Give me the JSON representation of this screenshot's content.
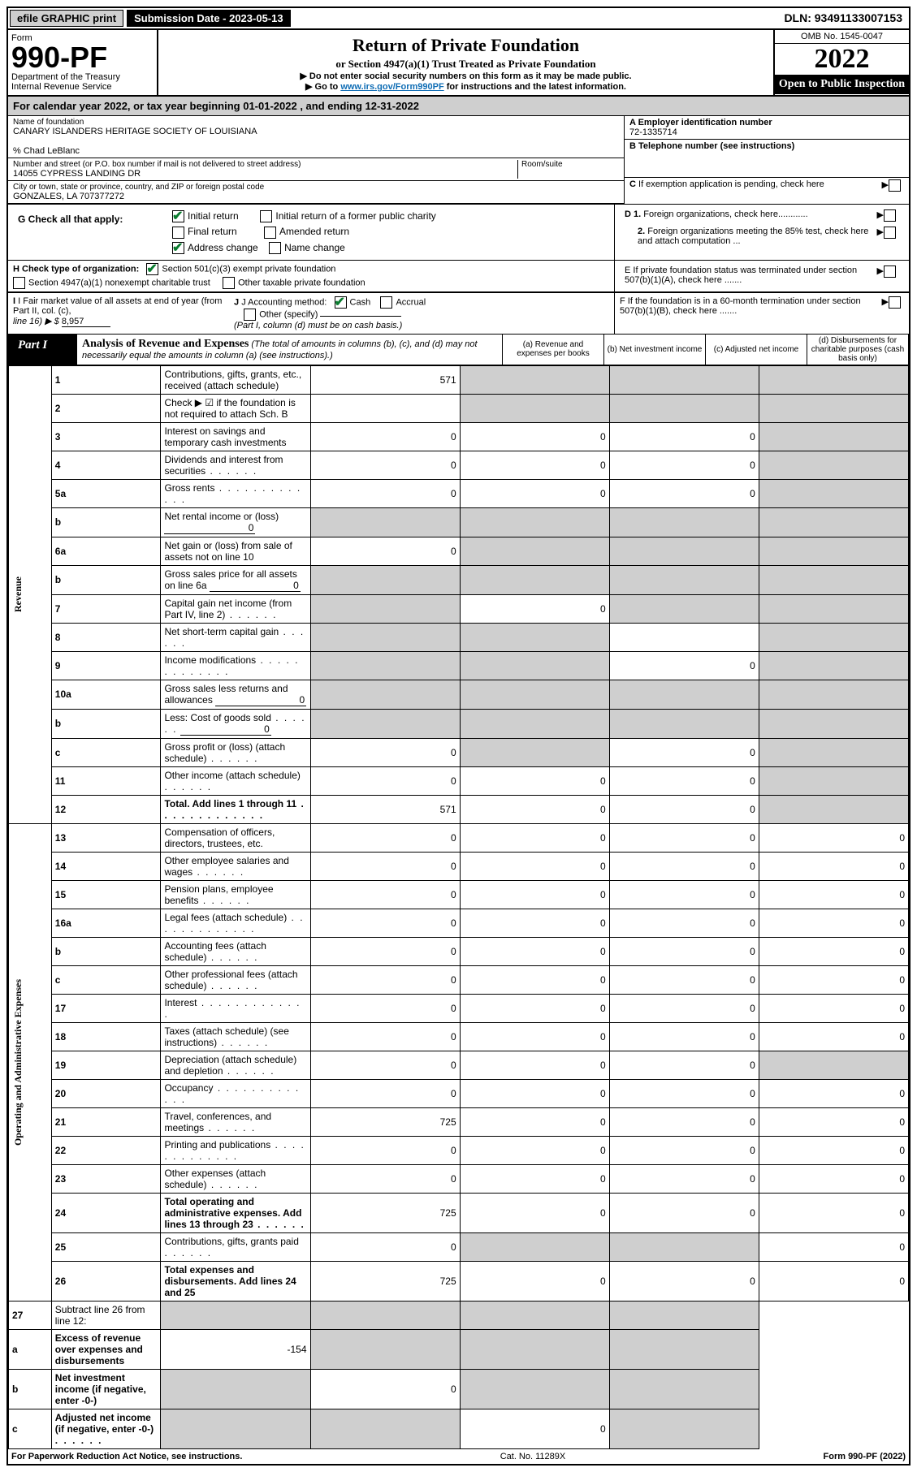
{
  "topbar": {
    "efile": "efile GRAPHIC print",
    "submission_label": "Submission Date - 2023-05-13",
    "dln": "DLN: 93491133007153"
  },
  "header": {
    "form_word": "Form",
    "form_no": "990-PF",
    "dept": "Department of the Treasury",
    "irs": "Internal Revenue Service",
    "title": "Return of Private Foundation",
    "subtitle": "or Section 4947(a)(1) Trust Treated as Private Foundation",
    "instr1": "▶ Do not enter social security numbers on this form as it may be made public.",
    "instr2_pre": "▶ Go to ",
    "instr2_link": "www.irs.gov/Form990PF",
    "instr2_post": " for instructions and the latest information.",
    "omb": "OMB No. 1545-0047",
    "year": "2022",
    "open": "Open to Public Inspection"
  },
  "cal_year": "For calendar year 2022, or tax year beginning 01-01-2022             , and ending 12-31-2022",
  "entity": {
    "name_label": "Name of foundation",
    "name": "CANARY ISLANDERS HERITAGE SOCIETY OF LOUISIANA",
    "care_of": "% Chad LeBlanc",
    "addr_label": "Number and street (or P.O. box number if mail is not delivered to street address)",
    "addr": "14055 CYPRESS LANDING DR",
    "room_label": "Room/suite",
    "city_label": "City or town, state or province, country, and ZIP or foreign postal code",
    "city": "GONZALES, LA  707377272",
    "ein_label": "A Employer identification number",
    "ein": "72-1335714",
    "phone_label": "B Telephone number (see instructions)",
    "c_label": "C If exemption application is pending, check here"
  },
  "g": {
    "label": "G Check all that apply:",
    "initial": "Initial return",
    "initial_former": "Initial return of a former public charity",
    "final": "Final return",
    "amended": "Amended return",
    "address": "Address change",
    "name_change": "Name change"
  },
  "d": {
    "d1": "D 1. Foreign organizations, check here",
    "d2": "2. Foreign organizations meeting the 85% test, check here and attach computation ...",
    "e": "E  If private foundation status was terminated under section 507(b)(1)(A), check here .......",
    "f": "F  If the foundation is in a 60-month termination under section 507(b)(1)(B), check here ......."
  },
  "h": {
    "label": "H Check type of organization:",
    "opt1": "Section 501(c)(3) exempt private foundation",
    "opt2": "Section 4947(a)(1) nonexempt charitable trust",
    "opt3": "Other taxable private foundation"
  },
  "i": {
    "label": "I Fair market value of all assets at end of year (from Part II, col. (c),",
    "line": "line 16) ▶ $ ",
    "value": "8,957"
  },
  "j": {
    "label": "J Accounting method:",
    "cash": "Cash",
    "accrual": "Accrual",
    "other": "Other (specify)",
    "note": "(Part I, column (d) must be on cash basis.)"
  },
  "part1": {
    "tab": "Part I",
    "title": "Analysis of Revenue and Expenses",
    "note": " (The total of amounts in columns (b), (c), and (d) may not necessarily equal the amounts in column (a) (see instructions).)",
    "col_a": "(a)  Revenue and expenses per books",
    "col_b": "(b)  Net investment income",
    "col_c": "(c)  Adjusted net income",
    "col_d": "(d)  Disbursements for charitable purposes (cash basis only)"
  },
  "sidelabels": {
    "revenue": "Revenue",
    "expenses": "Operating and Administrative Expenses"
  },
  "rows": [
    {
      "n": "1",
      "d": "Contributions, gifts, grants, etc., received (attach schedule)",
      "a": "571",
      "b": "",
      "c": "",
      "dd": "",
      "bg": true,
      "cc": true,
      "ddg": true
    },
    {
      "n": "2",
      "d": "Check ▶ ☑ if the foundation is not required to attach Sch. B",
      "type": "check",
      "bg": true,
      "cc": true,
      "ddg": true
    },
    {
      "n": "3",
      "d": "Interest on savings and temporary cash investments",
      "a": "0",
      "b": "0",
      "c": "0",
      "ddg": true
    },
    {
      "n": "4",
      "d": "Dividends and interest from securities",
      "a": "0",
      "b": "0",
      "c": "0",
      "ddg": true,
      "dots": "short"
    },
    {
      "n": "5a",
      "d": "Gross rents",
      "a": "0",
      "b": "0",
      "c": "0",
      "ddg": true,
      "dots": "long"
    },
    {
      "n": "b",
      "d": "Net rental income or (loss)",
      "inline": "0",
      "bg": true,
      "cc": true,
      "ddg": true,
      "ag": true
    },
    {
      "n": "6a",
      "d": "Net gain or (loss) from sale of assets not on line 10",
      "a": "0",
      "bg": true,
      "cc": true,
      "ddg": true
    },
    {
      "n": "b",
      "d": "Gross sales price for all assets on line 6a",
      "inline": "0",
      "bg": true,
      "cc": true,
      "ddg": true,
      "ag": true
    },
    {
      "n": "7",
      "d": "Capital gain net income (from Part IV, line 2)",
      "b": "0",
      "ag": true,
      "cc": true,
      "ddg": true,
      "dots": "short"
    },
    {
      "n": "8",
      "d": "Net short-term capital gain",
      "ag": true,
      "bg": true,
      "ddg": true,
      "c": "",
      "dots": "short"
    },
    {
      "n": "9",
      "d": "Income modifications",
      "ag": true,
      "bg": true,
      "c": "0",
      "ddg": true,
      "dots": "long"
    },
    {
      "n": "10a",
      "d": "Gross sales less returns and allowances",
      "inline": "0",
      "ag": true,
      "bg": true,
      "cc": true,
      "ddg": true
    },
    {
      "n": "b",
      "d": "Less: Cost of goods sold",
      "inline": "0",
      "ag": true,
      "bg": true,
      "cc": true,
      "ddg": true,
      "dots": "short"
    },
    {
      "n": "c",
      "d": "Gross profit or (loss) (attach schedule)",
      "a": "0",
      "bg": true,
      "c": "0",
      "ddg": true,
      "dots": "short"
    },
    {
      "n": "11",
      "d": "Other income (attach schedule)",
      "a": "0",
      "b": "0",
      "c": "0",
      "ddg": true,
      "dots": "short"
    },
    {
      "n": "12",
      "d": "Total. Add lines 1 through 11",
      "bold": true,
      "a": "571",
      "b": "0",
      "c": "0",
      "ddg": true,
      "dots": "long"
    }
  ],
  "exp_rows": [
    {
      "n": "13",
      "d": "Compensation of officers, directors, trustees, etc.",
      "a": "0",
      "b": "0",
      "c": "0",
      "dd": "0"
    },
    {
      "n": "14",
      "d": "Other employee salaries and wages",
      "a": "0",
      "b": "0",
      "c": "0",
      "dd": "0",
      "dots": "short"
    },
    {
      "n": "15",
      "d": "Pension plans, employee benefits",
      "a": "0",
      "b": "0",
      "c": "0",
      "dd": "0",
      "dots": "short"
    },
    {
      "n": "16a",
      "d": "Legal fees (attach schedule)",
      "a": "0",
      "b": "0",
      "c": "0",
      "dd": "0",
      "dots": "long"
    },
    {
      "n": "b",
      "d": "Accounting fees (attach schedule)",
      "a": "0",
      "b": "0",
      "c": "0",
      "dd": "0",
      "dots": "short"
    },
    {
      "n": "c",
      "d": "Other professional fees (attach schedule)",
      "a": "0",
      "b": "0",
      "c": "0",
      "dd": "0",
      "dots": "short"
    },
    {
      "n": "17",
      "d": "Interest",
      "a": "0",
      "b": "0",
      "c": "0",
      "dd": "0",
      "dots": "long"
    },
    {
      "n": "18",
      "d": "Taxes (attach schedule) (see instructions)",
      "a": "0",
      "b": "0",
      "c": "0",
      "dd": "0",
      "dots": "short"
    },
    {
      "n": "19",
      "d": "Depreciation (attach schedule) and depletion",
      "a": "0",
      "b": "0",
      "c": "0",
      "ddg": true,
      "dots": "short"
    },
    {
      "n": "20",
      "d": "Occupancy",
      "a": "0",
      "b": "0",
      "c": "0",
      "dd": "0",
      "dots": "long"
    },
    {
      "n": "21",
      "d": "Travel, conferences, and meetings",
      "a": "725",
      "b": "0",
      "c": "0",
      "dd": "0",
      "dots": "short"
    },
    {
      "n": "22",
      "d": "Printing and publications",
      "a": "0",
      "b": "0",
      "c": "0",
      "dd": "0",
      "dots": "long"
    },
    {
      "n": "23",
      "d": "Other expenses (attach schedule)",
      "a": "0",
      "b": "0",
      "c": "0",
      "dd": "0",
      "dots": "short"
    },
    {
      "n": "24",
      "d": "Total operating and administrative expenses. Add lines 13 through 23",
      "bold": true,
      "a": "725",
      "b": "0",
      "c": "0",
      "dd": "0",
      "dots": "short"
    },
    {
      "n": "25",
      "d": "Contributions, gifts, grants paid",
      "a": "0",
      "bg": true,
      "cc": true,
      "dd": "0",
      "dots": "short"
    },
    {
      "n": "26",
      "d": "Total expenses and disbursements. Add lines 24 and 25",
      "bold": true,
      "a": "725",
      "b": "0",
      "c": "0",
      "dd": "0"
    }
  ],
  "net_rows": [
    {
      "n": "27",
      "d": "Subtract line 26 from line 12:",
      "ag": true,
      "bg": true,
      "cc": true,
      "ddg": true
    },
    {
      "n": "a",
      "d": "Excess of revenue over expenses and disbursements",
      "bold": true,
      "a": "-154",
      "bg": true,
      "cc": true,
      "ddg": true
    },
    {
      "n": "b",
      "d": "Net investment income (if negative, enter -0-)",
      "bold": true,
      "ag": true,
      "b": "0",
      "cc": true,
      "ddg": true
    },
    {
      "n": "c",
      "d": "Adjusted net income (if negative, enter -0-)",
      "bold": true,
      "ag": true,
      "bg": true,
      "c": "0",
      "ddg": true,
      "dots": "short"
    }
  ],
  "footer": {
    "left": "For Paperwork Reduction Act Notice, see instructions.",
    "mid": "Cat. No. 11289X",
    "right": "Form 990-PF (2022)"
  }
}
